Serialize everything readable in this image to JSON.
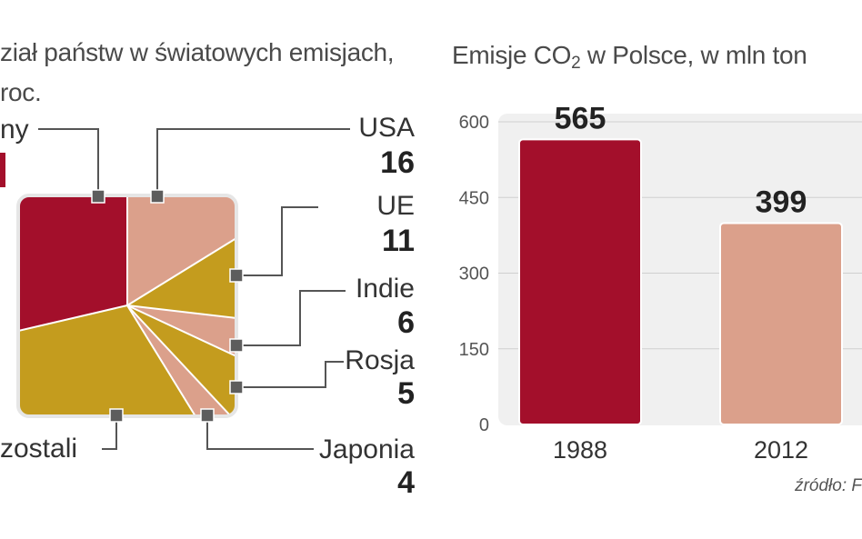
{
  "left_chart": {
    "title_line1": "ział państw w światowych emisjach,",
    "title_line2": "roc.",
    "top_left_label": "ny",
    "others_label": "zostali",
    "labels": [
      {
        "name": "USA",
        "value": "16"
      },
      {
        "name": "UE",
        "value": "11"
      },
      {
        "name": "Indie",
        "value": "6"
      },
      {
        "name": "Rosja",
        "value": "5"
      },
      {
        "name": "Japonia",
        "value": "4"
      }
    ],
    "colors": {
      "red": "#a30f2b",
      "salmon": "#dba08b",
      "gold": "#c49c1e"
    }
  },
  "right_chart": {
    "title_main": "Emisje CO",
    "title_sub": "2",
    "title_rest": " w Polsce, w mln ton",
    "source": "źródło: F"
  },
  "chart_data": [
    {
      "type": "pie",
      "labels": [
        "ny",
        "USA",
        "UE",
        "Indie",
        "Rosja",
        "Japonia",
        "zostali"
      ],
      "values": [
        null,
        16,
        11,
        6,
        5,
        4,
        null
      ]
    },
    {
      "type": "bar",
      "categories": [
        "1988",
        "2012"
      ],
      "values": [
        565,
        399
      ],
      "title": "Emisje CO2 w Polsce, w mln ton",
      "xlabel": "",
      "ylabel": "",
      "ylim": [
        0,
        600
      ],
      "yticks": [
        0,
        150,
        300,
        450,
        600
      ],
      "grid": true,
      "colors": [
        "#a30f2b",
        "#dba08b"
      ]
    }
  ]
}
